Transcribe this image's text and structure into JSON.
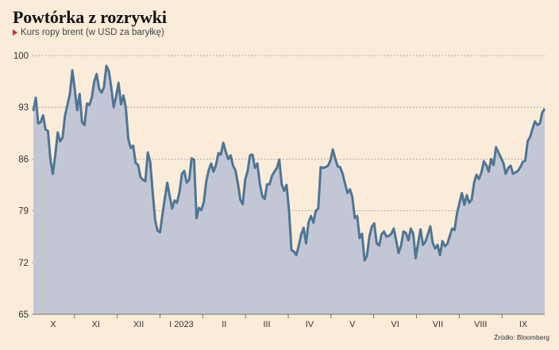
{
  "title": "Powtórka z rozrywki",
  "subtitle": "Kurs ropy brent (w USD za baryłkę)",
  "source": "Źródło: Bloomberg",
  "colors": {
    "background": "#fbebd9",
    "line": "#4e7594",
    "area": "#c3c7d5",
    "marker": "#d7272a"
  },
  "chart_data": {
    "type": "area",
    "title": "Powtórka z rozrywki",
    "ylabel": "Kurs ropy brent (w USD za baryłkę)",
    "ylim": [
      65,
      100
    ],
    "yticks": [
      65,
      72,
      79,
      86,
      93,
      100
    ],
    "grid": true,
    "x_labels": [
      "X",
      "XI",
      "XII",
      "I 2023",
      "II",
      "III",
      "IV",
      "V",
      "VI",
      "VII",
      "VIII",
      "IX"
    ],
    "series": [
      {
        "values": [
          92.5,
          94.3,
          90.8,
          91.0,
          91.9,
          90.0,
          89.8,
          85.9,
          84.0,
          86.5,
          89.6,
          88.4,
          88.9,
          91.9,
          93.3,
          94.8,
          98.0,
          95.5,
          92.6,
          94.8,
          91.0,
          90.6,
          93.5,
          93.3,
          94.3,
          96.5,
          97.5,
          95.5,
          95.0,
          95.7,
          98.6,
          97.9,
          95.7,
          93.0,
          94.5,
          96.3,
          93.4,
          94.6,
          92.9,
          88.7,
          87.5,
          87.8,
          85.5,
          85.2,
          83.6,
          83.2,
          83.0,
          86.9,
          85.6,
          81.5,
          77.8,
          76.3,
          76.1,
          78.4,
          80.7,
          82.8,
          81.0,
          79.3,
          80.4,
          80.1,
          81.5,
          84.0,
          84.4,
          82.8,
          83.2,
          86.1,
          85.9,
          78.0,
          79.4,
          79.1,
          80.2,
          82.9,
          84.5,
          85.4,
          84.3,
          85.2,
          86.8,
          86.6,
          88.2,
          87.0,
          86.0,
          86.5,
          85.1,
          84.5,
          82.7,
          80.5,
          79.9,
          83.2,
          84.4,
          86.5,
          86.6,
          84.8,
          85.4,
          82.7,
          81.0,
          80.6,
          82.6,
          82.6,
          83.7,
          84.3,
          84.8,
          85.9,
          82.6,
          81.7,
          82.5,
          79.0,
          73.7,
          73.5,
          73.0,
          74.3,
          75.8,
          76.7,
          74.6,
          77.4,
          78.3,
          77.4,
          79.0,
          79.3,
          84.9,
          84.8,
          84.9,
          85.1,
          85.8,
          87.3,
          86.0,
          85.0,
          84.9,
          84.0,
          82.7,
          81.4,
          81.9,
          80.9,
          78.0,
          78.3,
          75.3,
          75.9,
          72.3,
          72.9,
          75.5,
          76.9,
          77.3,
          74.6,
          74.3,
          75.8,
          76.2,
          75.5,
          75.6,
          75.9,
          76.6,
          75.0,
          73.3,
          74.3,
          76.2,
          76.0,
          75.0,
          76.6,
          75.9,
          72.6,
          74.6,
          76.5,
          74.4,
          74.8,
          75.8,
          76.9,
          74.7,
          73.9,
          74.4,
          73.0,
          74.9,
          74.2,
          74.5,
          75.6,
          76.6,
          76.4,
          78.7,
          80.1,
          81.4,
          79.8,
          81.1,
          80.1,
          80.5,
          82.8,
          83.9,
          83.3,
          84.2,
          85.7,
          85.2,
          84.3,
          86.0,
          85.2,
          87.6,
          86.9,
          86.2,
          85.5,
          84.0,
          84.8,
          85.1,
          84.0,
          84.2,
          84.4,
          84.9,
          85.6,
          85.8,
          88.4,
          89.0,
          90.1,
          91.1,
          90.6,
          90.8,
          92.3,
          92.8
        ]
      }
    ]
  }
}
